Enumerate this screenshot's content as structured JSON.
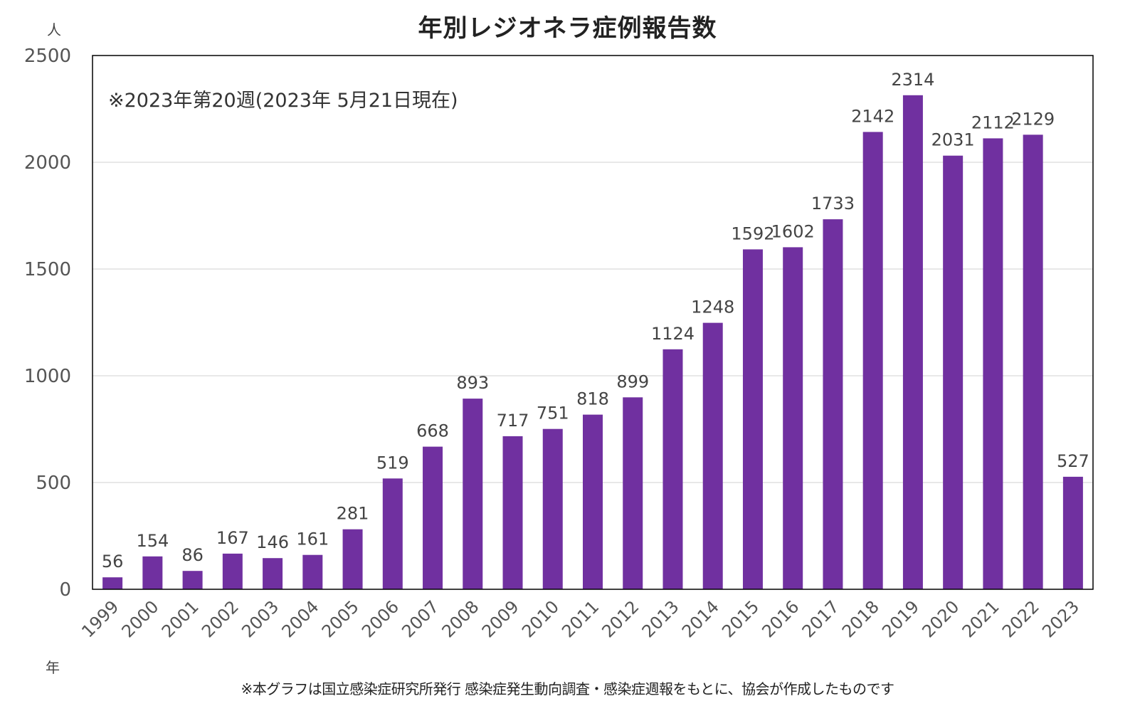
{
  "chart_data": {
    "type": "bar",
    "title": "年別レジオネラ症例報告数",
    "ylabel": "人",
    "xlabel": "年",
    "annotation": "※2023年第20週(2023年 5月21日現在)",
    "footnote": "※本グラフは国立感染症研究所発行 感染症発生動向調査・感染症週報をもとに、協会が作成したものです",
    "categories": [
      "1999",
      "2000",
      "2001",
      "2002",
      "2003",
      "2004",
      "2005",
      "2006",
      "2007",
      "2008",
      "2009",
      "2010",
      "2011",
      "2012",
      "2013",
      "2014",
      "2015",
      "2016",
      "2017",
      "2018",
      "2019",
      "2020",
      "2021",
      "2022",
      "2023"
    ],
    "values": [
      56,
      154,
      86,
      167,
      146,
      161,
      281,
      519,
      668,
      893,
      717,
      751,
      818,
      899,
      1124,
      1248,
      1592,
      1602,
      1733,
      2142,
      2314,
      2031,
      2112,
      2129,
      527
    ],
    "ylim": [
      0,
      2500
    ],
    "yticks": [
      0,
      500,
      1000,
      1500,
      2000,
      2500
    ],
    "grid": true,
    "bar_color": "#7030a0",
    "data_labels": true
  }
}
